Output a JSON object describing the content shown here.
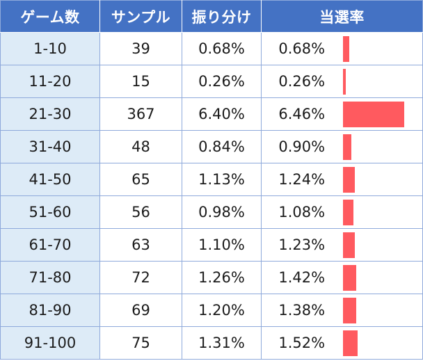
{
  "table": {
    "headers": {
      "game_count": "ゲーム数",
      "sample": "サンプル",
      "distribution": "振り分け",
      "hit_rate": "当選率"
    },
    "bar_color": "#ff5a5f",
    "header_color": "#4472c4",
    "rows": [
      {
        "range": "1-10",
        "sample": "39",
        "distribution": "0.68%",
        "hit_rate": "0.68%",
        "hit_value": 0.68
      },
      {
        "range": "11-20",
        "sample": "15",
        "distribution": "0.26%",
        "hit_rate": "0.26%",
        "hit_value": 0.26
      },
      {
        "range": "21-30",
        "sample": "367",
        "distribution": "6.40%",
        "hit_rate": "6.46%",
        "hit_value": 6.46
      },
      {
        "range": "31-40",
        "sample": "48",
        "distribution": "0.84%",
        "hit_rate": "0.90%",
        "hit_value": 0.9
      },
      {
        "range": "41-50",
        "sample": "65",
        "distribution": "1.13%",
        "hit_rate": "1.24%",
        "hit_value": 1.24
      },
      {
        "range": "51-60",
        "sample": "56",
        "distribution": "0.98%",
        "hit_rate": "1.08%",
        "hit_value": 1.08
      },
      {
        "range": "61-70",
        "sample": "63",
        "distribution": "1.10%",
        "hit_rate": "1.23%",
        "hit_value": 1.23
      },
      {
        "range": "71-80",
        "sample": "72",
        "distribution": "1.26%",
        "hit_rate": "1.42%",
        "hit_value": 1.42
      },
      {
        "range": "81-90",
        "sample": "69",
        "distribution": "1.20%",
        "hit_rate": "1.38%",
        "hit_value": 1.38
      },
      {
        "range": "91-100",
        "sample": "75",
        "distribution": "1.31%",
        "hit_rate": "1.52%",
        "hit_value": 1.52
      }
    ]
  }
}
